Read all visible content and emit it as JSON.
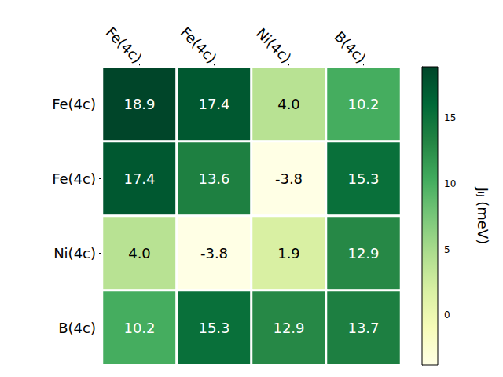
{
  "chart_data": {
    "type": "heatmap",
    "x_categories": [
      "Fe(4c)",
      "Fe(4c)",
      "Ni(4c)",
      "B(4c)"
    ],
    "y_categories": [
      "Fe(4c)",
      "Fe(4c)",
      "Ni(4c)",
      "B(4c)"
    ],
    "values": [
      [
        18.9,
        17.4,
        4.0,
        10.2
      ],
      [
        17.4,
        13.6,
        -3.8,
        15.3
      ],
      [
        4.0,
        -3.8,
        1.9,
        12.9
      ],
      [
        10.2,
        15.3,
        12.9,
        13.7
      ]
    ],
    "value_labels": [
      [
        "18.9",
        "17.4",
        "4.0",
        "10.2"
      ],
      [
        "17.4",
        "13.6",
        "-3.8",
        "15.3"
      ],
      [
        "4.0",
        "-3.8",
        "1.9",
        "12.9"
      ],
      [
        "10.2",
        "15.3",
        "12.9",
        "13.7"
      ]
    ],
    "data_labels": true,
    "colorbar": {
      "label": "Jᵢⱼ (meV)",
      "range": [
        -3.8,
        18.9
      ],
      "ticks": [
        0,
        5,
        10,
        15
      ]
    }
  }
}
